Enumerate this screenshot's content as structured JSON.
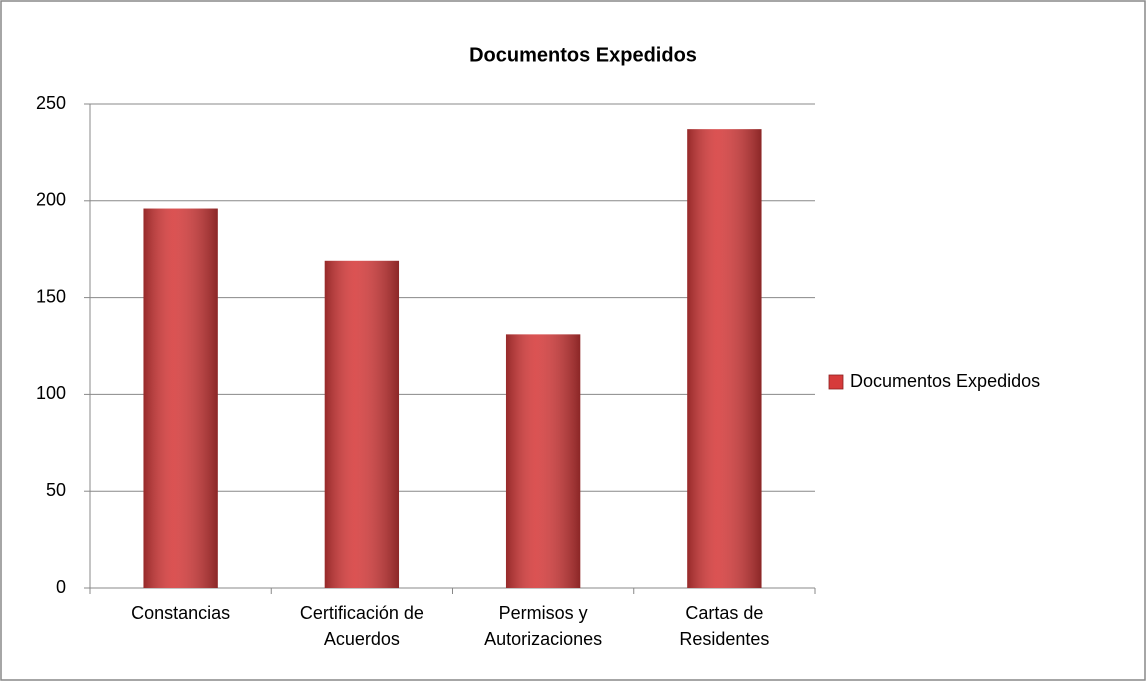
{
  "chart_data": {
    "type": "bar",
    "title": "Documentos Expedidos",
    "categories": [
      "Constancias",
      "Certificación de Acuerdos",
      "Permisos y Autorizaciones",
      "Cartas de Residentes"
    ],
    "series": [
      {
        "name": "Documentos Expedidos",
        "color": "#d63b3b",
        "values": [
          196,
          169,
          131,
          237
        ]
      }
    ],
    "ylim": [
      0,
      250
    ],
    "yticks": [
      0,
      50,
      100,
      150,
      200,
      250
    ],
    "grid": true,
    "legend": "right"
  }
}
